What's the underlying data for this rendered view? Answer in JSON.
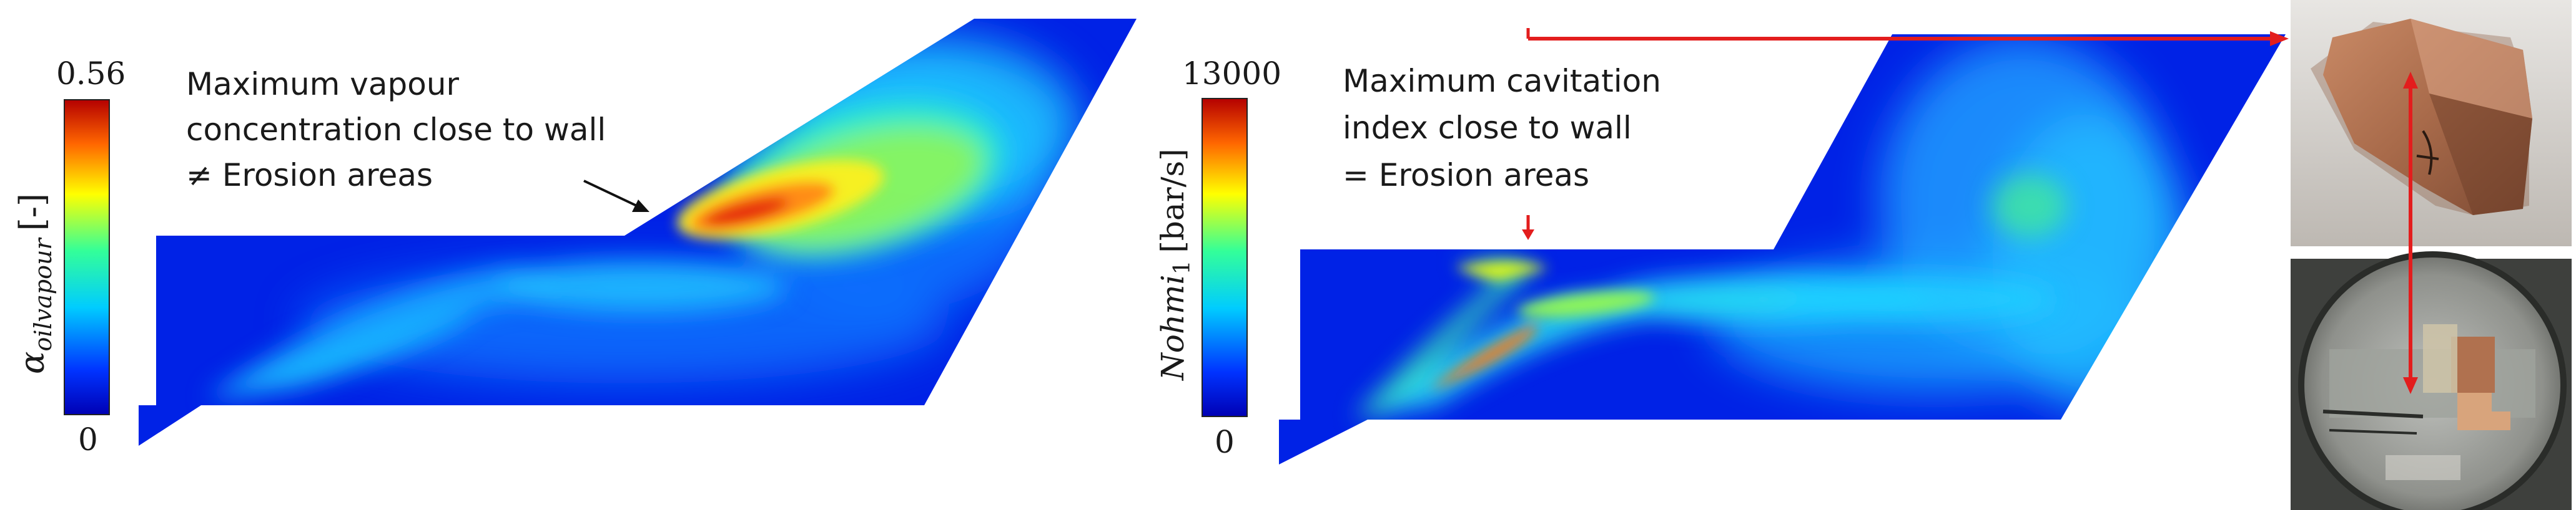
{
  "panels": [
    {
      "id": "vapour",
      "colorbar": {
        "max_label": "0.56",
        "min_label": "0",
        "symbol": "α",
        "subscript": "oilvapour",
        "unit": "[-]"
      },
      "annotation_lines": [
        "Maximum vapour",
        "concentration close to wall",
        "≠ Erosion areas"
      ]
    },
    {
      "id": "cavitation",
      "colorbar": {
        "max_label": "13000",
        "min_label": "0",
        "symbol": "Nohmi",
        "subscript": "1",
        "unit": "[bar/s]"
      },
      "annotation_lines": [
        "Maximum cavitation",
        "index close to wall",
        "= Erosion areas"
      ]
    }
  ],
  "colormap": [
    "#0000b4",
    "#0033ff",
    "#00ccff",
    "#33ff99",
    "#ffff00",
    "#ff6600",
    "#b40000"
  ],
  "arrow_color": "#e31d1d",
  "photos": [
    {
      "id": "sample-photo-top",
      "subject": "eroded copper test specimen"
    },
    {
      "id": "sample-photo-bottom",
      "subject": "test chamber with specimen installed"
    }
  ]
}
